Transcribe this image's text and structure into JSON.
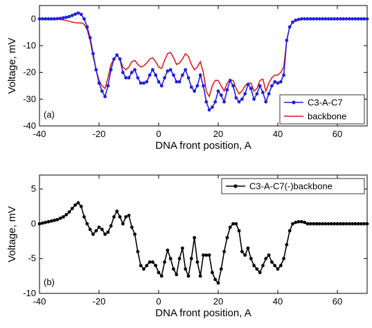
{
  "chart_data": [
    {
      "type": "line",
      "panel_label": "(a)",
      "xlabel": "DNA front position, A",
      "ylabel": "Voltage, mV",
      "xlim": [
        -40,
        70
      ],
      "ylim": [
        -40,
        5
      ],
      "xticks": [
        "-40",
        "-20",
        "0",
        "20",
        "40",
        "60"
      ],
      "yticks": [
        "0",
        "-10",
        "-20",
        "-30",
        "-40"
      ],
      "legend_position": "bottom-right",
      "colors": {
        "C3-A-C7": "#1f1fe0",
        "backbone": "#e01010"
      },
      "series": [
        {
          "name": "C3-A-C7",
          "x": [
            -40,
            -39,
            -38,
            -37,
            -36,
            -35,
            -34,
            -33,
            -32,
            -31,
            -30,
            -29,
            -28,
            -27,
            -26,
            -25,
            -24,
            -23,
            -22,
            -21,
            -20,
            -19,
            -18,
            -17,
            -16,
            -15,
            -14,
            -13,
            -12,
            -11,
            -10,
            -9,
            -8,
            -7,
            -6,
            -5,
            -4,
            -3,
            -2,
            -1,
            0,
            1,
            2,
            3,
            4,
            5,
            6,
            7,
            8,
            9,
            10,
            11,
            12,
            13,
            14,
            15,
            16,
            17,
            18,
            19,
            20,
            21,
            22,
            23,
            24,
            25,
            26,
            27,
            28,
            29,
            30,
            31,
            32,
            33,
            34,
            35,
            36,
            37,
            38,
            39,
            40,
            41,
            42,
            43,
            44,
            45,
            46,
            47,
            48,
            49,
            50,
            51,
            52,
            53,
            54,
            55,
            56,
            57,
            58,
            59,
            60,
            61,
            62,
            63,
            64,
            65,
            66,
            67,
            68,
            69,
            70
          ],
          "values": [
            0,
            0,
            0,
            0,
            0,
            0,
            0.1,
            0.2,
            0.4,
            0.6,
            0.9,
            1.3,
            1.8,
            2.2,
            1.7,
            0,
            -3,
            -7,
            -13,
            -19,
            -24,
            -27,
            -29,
            -25,
            -19,
            -15,
            -13.5,
            -15,
            -20,
            -22,
            -22,
            -20,
            -19,
            -22,
            -24,
            -24,
            -23.5,
            -21,
            -19,
            -21,
            -23.5,
            -25,
            -22,
            -19.5,
            -19,
            -21,
            -23.5,
            -23.5,
            -21,
            -19,
            -22,
            -25.5,
            -27,
            -25,
            -21,
            -25,
            -31,
            -34,
            -33,
            -31,
            -27,
            -28.5,
            -31,
            -26.5,
            -23,
            -25,
            -29.5,
            -31,
            -30,
            -28,
            -24.5,
            -26,
            -30,
            -28,
            -25,
            -27.5,
            -31,
            -28,
            -25,
            -23.5,
            -24,
            -23.5,
            -21,
            -8,
            -3,
            -1.2,
            -0.5,
            -0.2,
            0,
            0,
            0,
            0,
            0,
            0,
            0,
            0,
            0,
            0,
            0,
            0,
            0,
            0,
            0,
            0,
            0,
            0,
            0,
            0,
            0,
            0,
            0
          ]
        },
        {
          "name": "backbone",
          "x": [
            -40,
            -39,
            -38,
            -37,
            -36,
            -35,
            -34,
            -33,
            -32,
            -31,
            -30,
            -29,
            -28,
            -27,
            -26,
            -25,
            -24,
            -23,
            -22,
            -21,
            -20,
            -19,
            -18,
            -17,
            -16,
            -15,
            -14,
            -13,
            -12,
            -11,
            -10,
            -9,
            -8,
            -7,
            -6,
            -5,
            -4,
            -3,
            -2,
            -1,
            0,
            1,
            2,
            3,
            4,
            5,
            6,
            7,
            8,
            9,
            10,
            11,
            12,
            13,
            14,
            15,
            16,
            17,
            18,
            19,
            20,
            21,
            22,
            23,
            24,
            25,
            26,
            27,
            28,
            29,
            30,
            31,
            32,
            33,
            34,
            35,
            36,
            37,
            38,
            39,
            40,
            41,
            42,
            43,
            44,
            45,
            46,
            47,
            48,
            49,
            50,
            51,
            52,
            53,
            54,
            55,
            56,
            57,
            58,
            59,
            60,
            61,
            62,
            63,
            64,
            65,
            66,
            67,
            68,
            69,
            70
          ],
          "values": [
            0,
            0,
            0,
            0,
            0,
            0,
            -0.1,
            -0.2,
            -0.4,
            -0.6,
            -0.9,
            -1.2,
            -1.4,
            -1.5,
            -1.5,
            -2,
            -4,
            -8,
            -14,
            -19,
            -23,
            -25,
            -26,
            -22,
            -17,
            -15,
            -13.5,
            -15,
            -18,
            -19,
            -18,
            -16,
            -15.5,
            -17,
            -18,
            -17.5,
            -16.5,
            -15,
            -14.5,
            -16,
            -18,
            -18.5,
            -15.5,
            -13,
            -12.5,
            -14.5,
            -17,
            -16.5,
            -15,
            -13,
            -14,
            -17,
            -19,
            -18,
            -16,
            -20,
            -27,
            -29,
            -25,
            -23,
            -23,
            -25,
            -27,
            -24,
            -23,
            -23,
            -26,
            -28,
            -27,
            -25,
            -24,
            -24,
            -27,
            -26,
            -23,
            -22.5,
            -27,
            -24,
            -22,
            -21,
            -21,
            -20,
            -18,
            -8,
            -3,
            -1.2,
            -0.5,
            -0.2,
            0,
            0,
            0,
            0,
            0,
            0,
            0,
            0,
            0,
            0,
            0,
            0,
            0,
            0,
            0,
            0,
            0,
            0,
            0,
            0,
            0,
            0,
            0
          ]
        }
      ]
    },
    {
      "type": "line",
      "panel_label": "(b)",
      "xlabel": "DNA front position, A",
      "ylabel": "Voltage, mV",
      "xlim": [
        -40,
        70
      ],
      "ylim": [
        -10,
        7
      ],
      "xticks": [
        "-40",
        "-20",
        "0",
        "20",
        "40",
        "60"
      ],
      "yticks": [
        "5",
        "0",
        "-5",
        "-10"
      ],
      "legend_position": "top-right",
      "colors": {
        "C3-A-C7(-)backbone": "#000000"
      },
      "series": [
        {
          "name": "C3-A-C7(-)backbone",
          "x": [
            -40,
            -39,
            -38,
            -37,
            -36,
            -35,
            -34,
            -33,
            -32,
            -31,
            -30,
            -29,
            -28,
            -27,
            -26,
            -25,
            -24,
            -23,
            -22,
            -21,
            -20,
            -19,
            -18,
            -17,
            -16,
            -15,
            -14,
            -13,
            -12,
            -11,
            -10,
            -9,
            -8,
            -7,
            -6,
            -5,
            -4,
            -3,
            -2,
            -1,
            0,
            1,
            2,
            3,
            4,
            5,
            6,
            7,
            8,
            9,
            10,
            11,
            12,
            13,
            14,
            15,
            16,
            17,
            18,
            19,
            20,
            21,
            22,
            23,
            24,
            25,
            26,
            27,
            28,
            29,
            30,
            31,
            32,
            33,
            34,
            35,
            36,
            37,
            38,
            39,
            40,
            41,
            42,
            43,
            44,
            45,
            46,
            47,
            48,
            49,
            50,
            51,
            52,
            53,
            54,
            55,
            56,
            57,
            58,
            59,
            60,
            61,
            62,
            63,
            64,
            65,
            66,
            67,
            68,
            69,
            70
          ],
          "values": [
            0,
            0.1,
            0.2,
            0.3,
            0.4,
            0.5,
            0.6,
            0.8,
            1,
            1.3,
            1.7,
            2.2,
            2.7,
            3,
            2.5,
            1,
            0,
            -0.8,
            -1.5,
            -1,
            -0.5,
            -0.8,
            -1.5,
            -1.2,
            -0.3,
            1,
            1.8,
            1,
            0,
            1,
            1.2,
            -0.5,
            -1.5,
            -4,
            -6,
            -6.5,
            -6,
            -5.5,
            -5.5,
            -6,
            -7,
            -7.5,
            -5.5,
            -3.8,
            -5,
            -6.5,
            -7.3,
            -5,
            -3.5,
            -6.5,
            -7.5,
            -5,
            -2,
            -5.5,
            -7.5,
            -4.5,
            -4.5,
            -4.5,
            -7,
            -8,
            -8.5,
            -6.5,
            -4,
            -2,
            -0.5,
            0,
            0,
            -1,
            -4,
            -4.5,
            -3.5,
            -5,
            -6,
            -6.5,
            -7,
            -6,
            -5,
            -4.5,
            -5.5,
            -6,
            -6.5,
            -6,
            -5,
            -3,
            -1,
            0,
            0.2,
            0.3,
            0.3,
            0.2,
            0,
            0,
            0,
            0,
            0,
            0,
            0,
            0,
            0,
            0,
            0,
            0,
            0,
            0,
            0,
            0,
            0,
            0,
            0,
            0,
            0
          ]
        }
      ]
    }
  ]
}
